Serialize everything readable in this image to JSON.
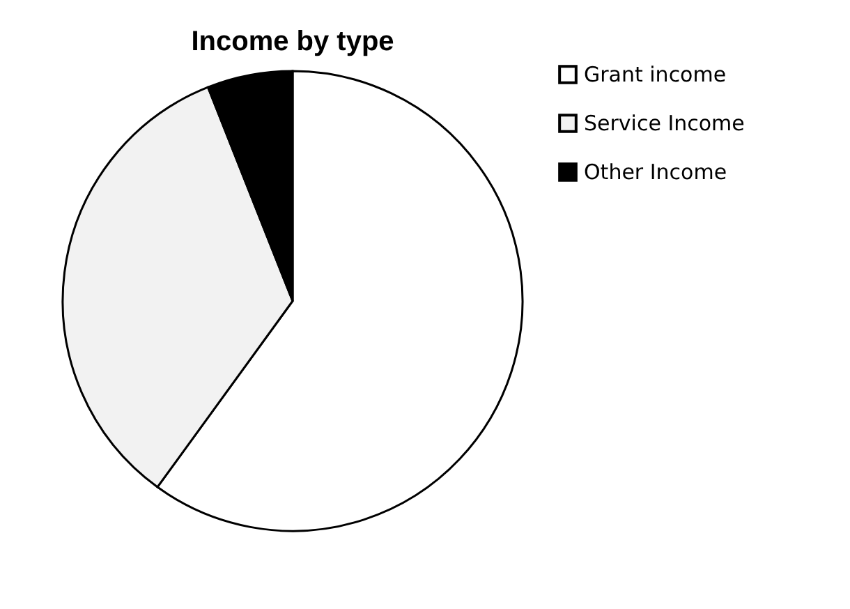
{
  "chart_data": {
    "type": "pie",
    "title": "Income by type",
    "categories": [
      "Grant income",
      "Service Income",
      "Other Income"
    ],
    "values": [
      60,
      34,
      6
    ],
    "colors": [
      "#ffffff",
      "#f2f2f2",
      "#000000"
    ],
    "legend": "right"
  }
}
